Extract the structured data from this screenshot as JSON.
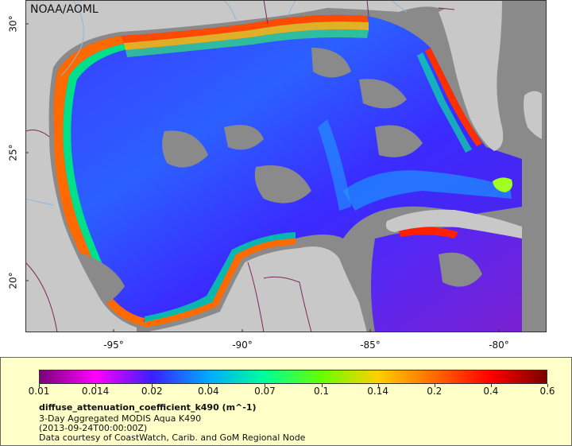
{
  "map": {
    "credit": "NOAA/AOML",
    "longitude_ticks": [
      {
        "value": -95,
        "label": "-95°"
      },
      {
        "value": -90,
        "label": "-90°"
      },
      {
        "value": -85,
        "label": "-85°"
      },
      {
        "value": -80,
        "label": "-80°"
      }
    ],
    "latitude_ticks": [
      {
        "value": 30,
        "label": "30°"
      },
      {
        "value": 25,
        "label": "25°"
      },
      {
        "value": 20,
        "label": "20°"
      }
    ],
    "colors": {
      "land": "#c8c8c8",
      "no_data": "#8a8a8a",
      "rivers": "#8fb6d6",
      "borders": "#7a2a5a"
    }
  },
  "legend": {
    "ticks": [
      "0.01",
      "0.014",
      "0.02",
      "0.04",
      "0.07",
      "0.1",
      "0.14",
      "0.2",
      "0.4",
      "0.6"
    ],
    "colorscale": [
      "#7a007a",
      "#ff00ff",
      "#3a1fff",
      "#00aaff",
      "#00ff99",
      "#66ff00",
      "#ffd000",
      "#ff6a00",
      "#ff0000",
      "#7a0000"
    ],
    "variable": "diffuse_attenuation_coefficient_k490 (m^-1)",
    "dataset": "3-Day Aggregated MODIS Aqua K490",
    "time": "(2013-09-24T00:00:00Z)",
    "source": "Data courtesy of CoastWatch, Carib. and GoM Regional Node"
  }
}
